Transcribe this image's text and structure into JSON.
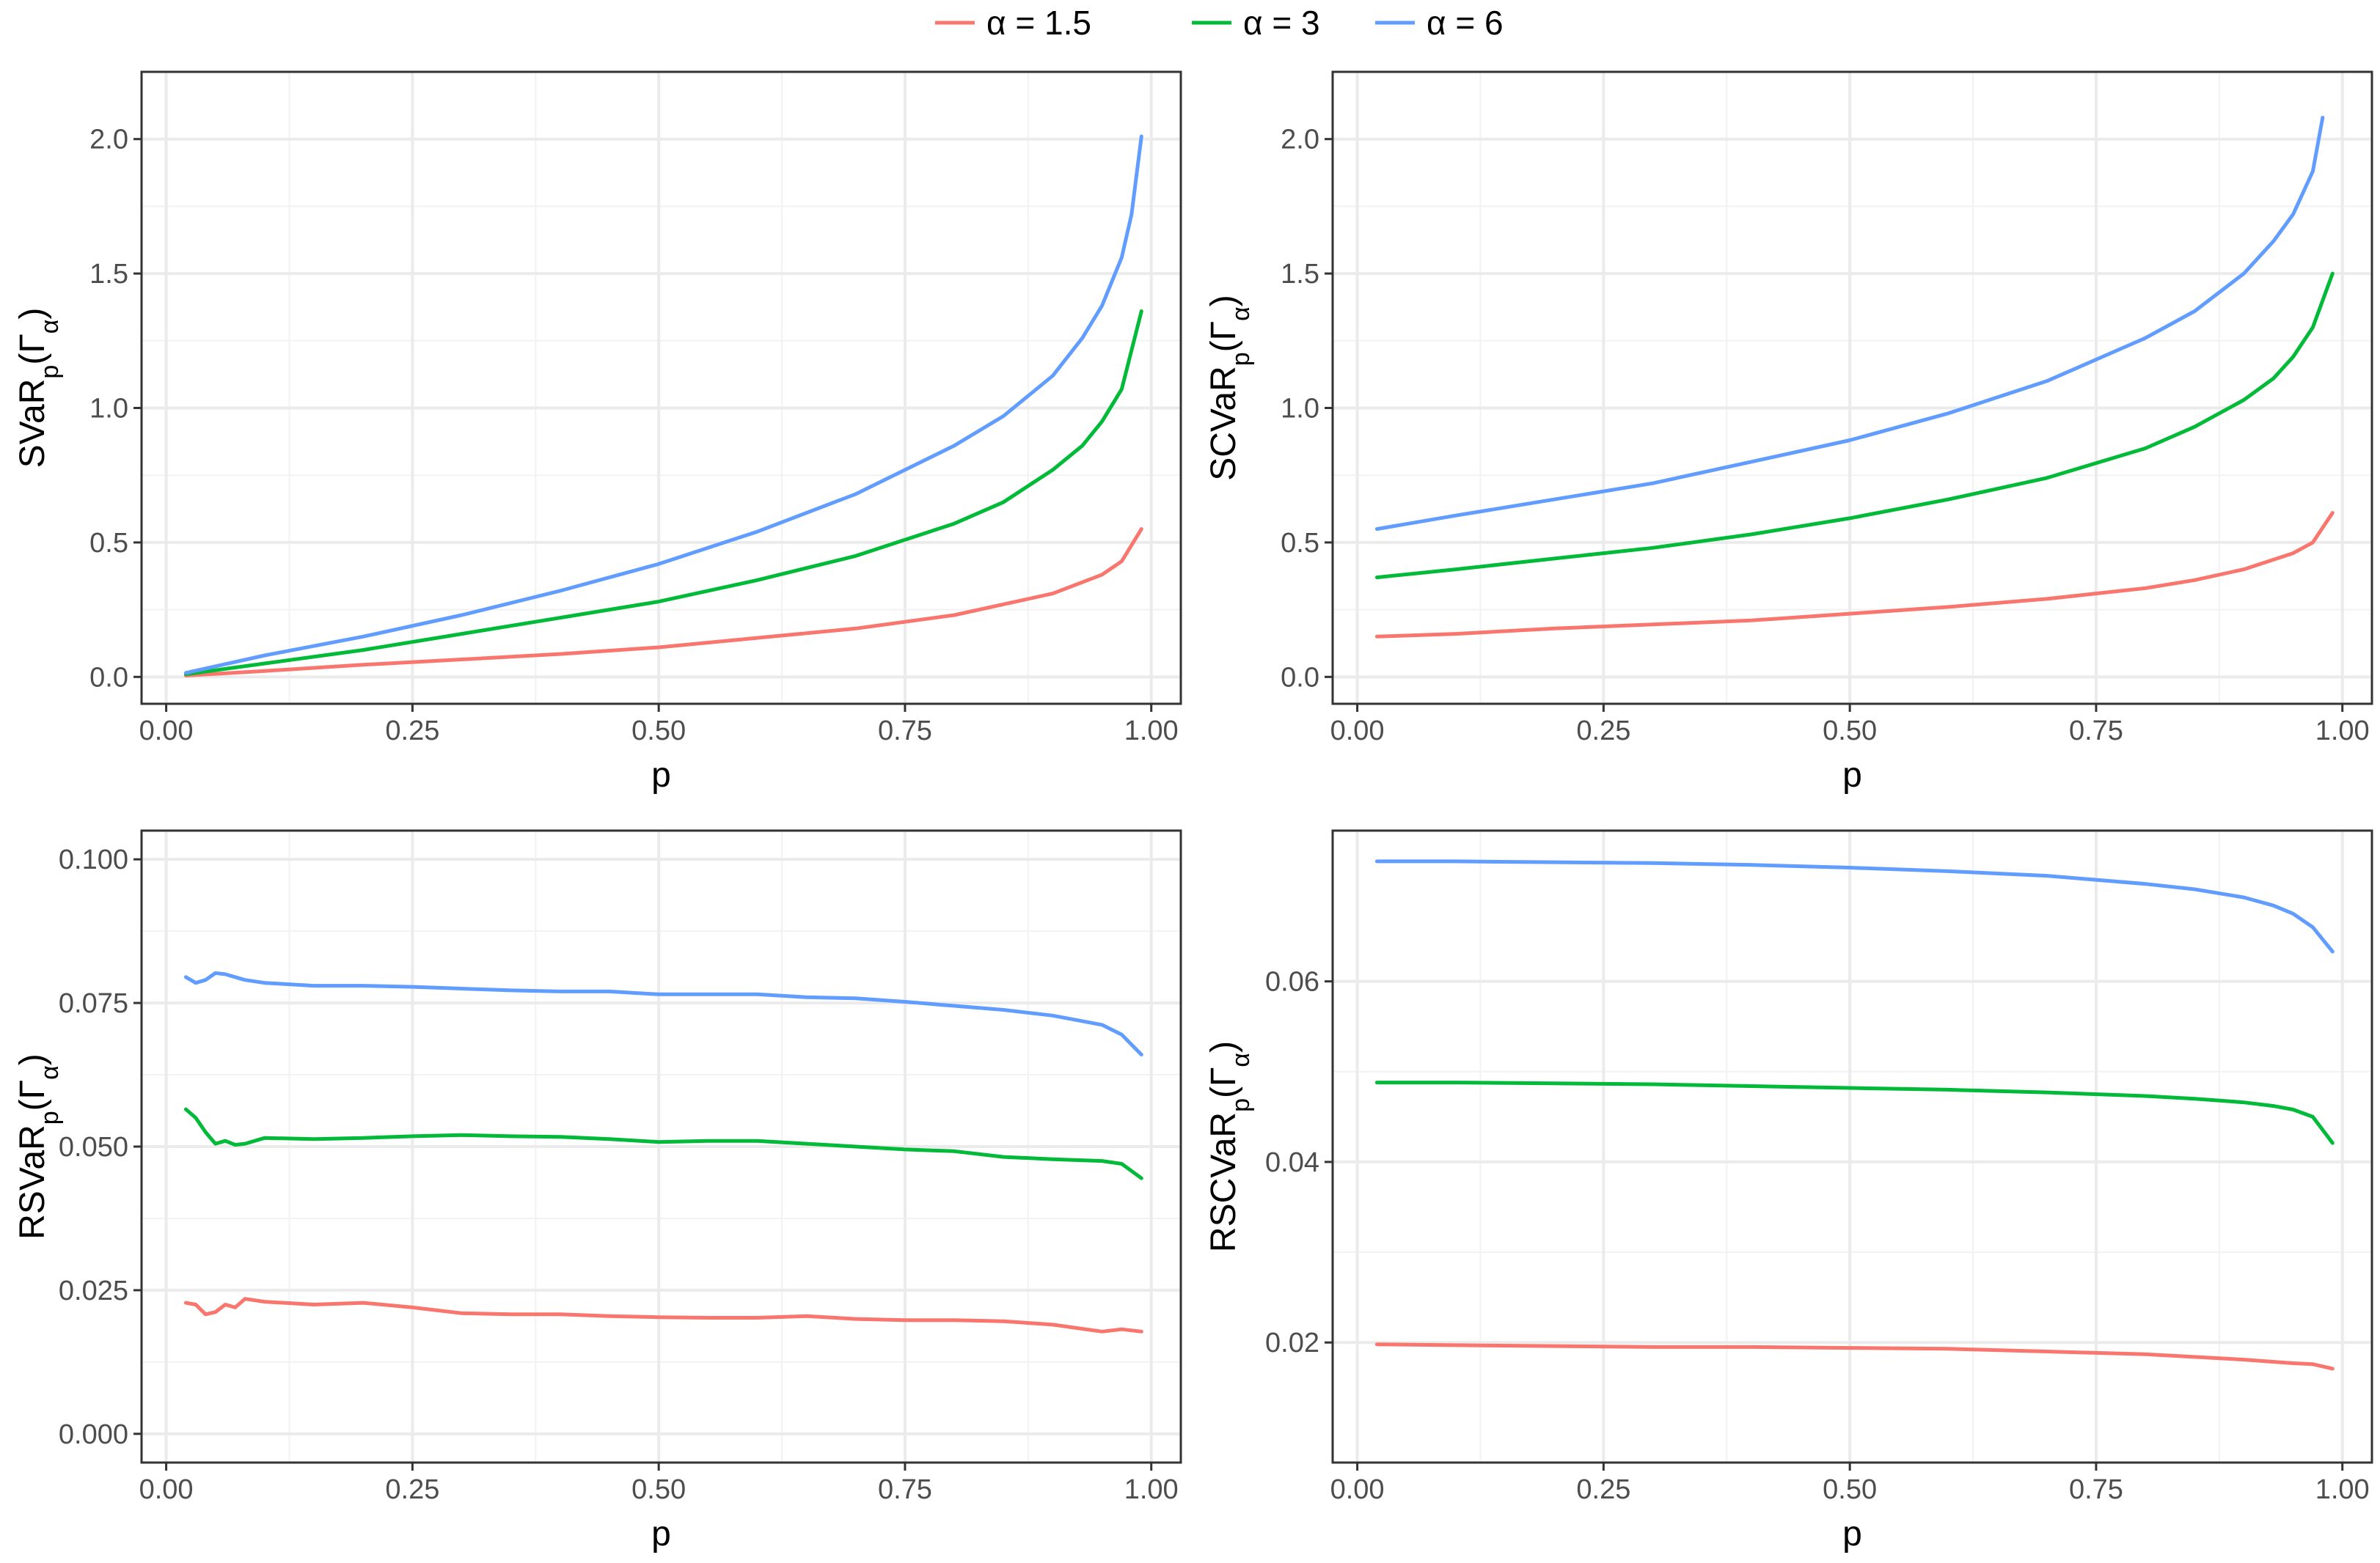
{
  "legend": {
    "placement": "top-center",
    "entries": [
      {
        "label": "α = 1.5",
        "color": "#F8766D"
      },
      {
        "label": "α = 3",
        "color": "#00BA38"
      },
      {
        "label": "α = 6",
        "color": "#619CFF"
      }
    ]
  },
  "chart_data": [
    {
      "type": "line",
      "panel": "top-left",
      "xlabel": "p",
      "ylabel": {
        "main": "SVaR",
        "sub": "p",
        "arg_open": "(Γ",
        "arg_sub": "α",
        "arg_close": ")"
      },
      "xlim": [
        -0.025,
        1.03
      ],
      "ylim": [
        -0.1,
        2.25
      ],
      "xticks": [
        0,
        0.25,
        0.5,
        0.75,
        1
      ],
      "xtick_labels": [
        "0.00",
        "0.25",
        "0.50",
        "0.75",
        "1.00"
      ],
      "yticks": [
        0,
        0.5,
        1,
        1.5,
        2
      ],
      "ytick_labels": [
        "0.0",
        "0.5",
        "1.0",
        "1.5",
        "2.0"
      ],
      "grid": true,
      "series": [
        {
          "name": "α = 1.5",
          "color": "#F8766D",
          "x": [
            0.02,
            0.1,
            0.2,
            0.3,
            0.4,
            0.5,
            0.6,
            0.7,
            0.8,
            0.85,
            0.9,
            0.95,
            0.97,
            0.99
          ],
          "y": [
            0.005,
            0.022,
            0.045,
            0.065,
            0.085,
            0.11,
            0.145,
            0.18,
            0.23,
            0.27,
            0.31,
            0.38,
            0.43,
            0.55
          ]
        },
        {
          "name": "α = 3",
          "color": "#00BA38",
          "x": [
            0.02,
            0.1,
            0.2,
            0.3,
            0.4,
            0.5,
            0.6,
            0.7,
            0.8,
            0.85,
            0.9,
            0.93,
            0.95,
            0.97,
            0.99
          ],
          "y": [
            0.01,
            0.05,
            0.1,
            0.16,
            0.22,
            0.28,
            0.36,
            0.45,
            0.57,
            0.65,
            0.77,
            0.86,
            0.95,
            1.07,
            1.36
          ]
        },
        {
          "name": "α = 6",
          "color": "#619CFF",
          "x": [
            0.02,
            0.1,
            0.2,
            0.3,
            0.4,
            0.5,
            0.6,
            0.7,
            0.8,
            0.85,
            0.9,
            0.93,
            0.95,
            0.97,
            0.98,
            0.99
          ],
          "y": [
            0.015,
            0.08,
            0.15,
            0.23,
            0.32,
            0.42,
            0.54,
            0.68,
            0.86,
            0.97,
            1.12,
            1.26,
            1.38,
            1.56,
            1.72,
            2.01
          ]
        }
      ]
    },
    {
      "type": "line",
      "panel": "top-right",
      "xlabel": "p",
      "ylabel": {
        "main": "SCVaR",
        "sub": "p",
        "arg_open": "(Γ",
        "arg_sub": "α",
        "arg_close": ")"
      },
      "xlim": [
        -0.025,
        1.03
      ],
      "ylim": [
        -0.1,
        2.25
      ],
      "xticks": [
        0,
        0.25,
        0.5,
        0.75,
        1
      ],
      "xtick_labels": [
        "0.00",
        "0.25",
        "0.50",
        "0.75",
        "1.00"
      ],
      "yticks": [
        0,
        0.5,
        1,
        1.5,
        2
      ],
      "ytick_labels": [
        "0.0",
        "0.5",
        "1.0",
        "1.5",
        "2.0"
      ],
      "grid": true,
      "series": [
        {
          "name": "α = 1.5",
          "color": "#F8766D",
          "x": [
            0.02,
            0.1,
            0.2,
            0.3,
            0.4,
            0.5,
            0.6,
            0.7,
            0.8,
            0.85,
            0.9,
            0.95,
            0.97,
            0.99
          ],
          "y": [
            0.15,
            0.16,
            0.18,
            0.195,
            0.21,
            0.235,
            0.26,
            0.29,
            0.33,
            0.36,
            0.4,
            0.46,
            0.5,
            0.61
          ]
        },
        {
          "name": "α = 3",
          "color": "#00BA38",
          "x": [
            0.02,
            0.1,
            0.2,
            0.3,
            0.4,
            0.5,
            0.6,
            0.7,
            0.8,
            0.85,
            0.9,
            0.93,
            0.95,
            0.97,
            0.99
          ],
          "y": [
            0.37,
            0.4,
            0.44,
            0.48,
            0.53,
            0.59,
            0.66,
            0.74,
            0.85,
            0.93,
            1.03,
            1.11,
            1.19,
            1.3,
            1.5
          ]
        },
        {
          "name": "α = 6",
          "color": "#619CFF",
          "x": [
            0.02,
            0.1,
            0.2,
            0.3,
            0.4,
            0.5,
            0.6,
            0.7,
            0.8,
            0.85,
            0.9,
            0.93,
            0.95,
            0.97,
            0.98
          ],
          "y": [
            0.55,
            0.6,
            0.66,
            0.72,
            0.8,
            0.88,
            0.98,
            1.1,
            1.26,
            1.36,
            1.5,
            1.62,
            1.72,
            1.88,
            2.08
          ]
        }
      ]
    },
    {
      "type": "line",
      "panel": "bottom-left",
      "xlabel": "p",
      "ylabel": {
        "main": "RSVaR",
        "sub": "p",
        "arg_open": "(Γ",
        "arg_sub": "α",
        "arg_close": ")"
      },
      "xlim": [
        -0.025,
        1.03
      ],
      "ylim": [
        -0.005,
        0.105
      ],
      "xticks": [
        0,
        0.25,
        0.5,
        0.75,
        1
      ],
      "xtick_labels": [
        "0.00",
        "0.25",
        "0.50",
        "0.75",
        "1.00"
      ],
      "yticks": [
        0,
        0.025,
        0.05,
        0.075,
        0.1
      ],
      "ytick_labels": [
        "0.000",
        "0.025",
        "0.050",
        "0.075",
        "0.100"
      ],
      "grid": true,
      "series": [
        {
          "name": "α = 1.5",
          "color": "#F8766D",
          "x": [
            0.02,
            0.03,
            0.04,
            0.05,
            0.06,
            0.07,
            0.08,
            0.1,
            0.15,
            0.2,
            0.25,
            0.3,
            0.35,
            0.4,
            0.45,
            0.5,
            0.55,
            0.6,
            0.65,
            0.7,
            0.75,
            0.8,
            0.85,
            0.9,
            0.95,
            0.97,
            0.99
          ],
          "y": [
            0.0228,
            0.0225,
            0.0208,
            0.0212,
            0.0225,
            0.022,
            0.0235,
            0.023,
            0.0225,
            0.0228,
            0.022,
            0.021,
            0.0208,
            0.0208,
            0.0205,
            0.0203,
            0.0202,
            0.0202,
            0.0205,
            0.02,
            0.0198,
            0.0198,
            0.0196,
            0.019,
            0.0178,
            0.0182,
            0.0178
          ]
        },
        {
          "name": "α = 3",
          "color": "#00BA38",
          "x": [
            0.02,
            0.03,
            0.04,
            0.05,
            0.06,
            0.07,
            0.08,
            0.1,
            0.15,
            0.2,
            0.25,
            0.3,
            0.35,
            0.4,
            0.45,
            0.5,
            0.55,
            0.6,
            0.65,
            0.7,
            0.75,
            0.8,
            0.85,
            0.9,
            0.95,
            0.97,
            0.99
          ],
          "y": [
            0.0565,
            0.055,
            0.0525,
            0.0505,
            0.051,
            0.0503,
            0.0505,
            0.0515,
            0.0513,
            0.0515,
            0.0518,
            0.052,
            0.0518,
            0.0517,
            0.0513,
            0.0508,
            0.051,
            0.051,
            0.0505,
            0.05,
            0.0495,
            0.0492,
            0.0482,
            0.0478,
            0.0475,
            0.047,
            0.0445
          ]
        },
        {
          "name": "α = 6",
          "color": "#619CFF",
          "x": [
            0.02,
            0.03,
            0.04,
            0.05,
            0.06,
            0.07,
            0.08,
            0.1,
            0.15,
            0.2,
            0.25,
            0.3,
            0.35,
            0.4,
            0.45,
            0.5,
            0.55,
            0.6,
            0.65,
            0.7,
            0.75,
            0.8,
            0.85,
            0.9,
            0.95,
            0.97,
            0.99
          ],
          "y": [
            0.0795,
            0.0785,
            0.079,
            0.0802,
            0.08,
            0.0795,
            0.079,
            0.0785,
            0.078,
            0.078,
            0.0778,
            0.0775,
            0.0772,
            0.077,
            0.077,
            0.0765,
            0.0765,
            0.0765,
            0.076,
            0.0758,
            0.0752,
            0.0745,
            0.0738,
            0.0728,
            0.0712,
            0.0695,
            0.066
          ]
        }
      ]
    },
    {
      "type": "line",
      "panel": "bottom-right",
      "xlabel": "p",
      "ylabel": {
        "main": "RSCVaR",
        "sub": "p",
        "arg_open": "(Γ",
        "arg_sub": "α",
        "arg_close": ")"
      },
      "xlim": [
        -0.025,
        1.03
      ],
      "ylim": [
        0.0067,
        0.0767
      ],
      "xticks": [
        0,
        0.25,
        0.5,
        0.75,
        1
      ],
      "xtick_labels": [
        "0.00",
        "0.25",
        "0.50",
        "0.75",
        "1.00"
      ],
      "yticks": [
        0.02,
        0.04,
        0.06
      ],
      "ytick_labels": [
        "0.02",
        "0.04",
        "0.06"
      ],
      "grid": true,
      "series": [
        {
          "name": "α = 1.5",
          "color": "#F8766D",
          "x": [
            0.02,
            0.1,
            0.2,
            0.3,
            0.4,
            0.5,
            0.6,
            0.7,
            0.8,
            0.85,
            0.9,
            0.95,
            0.97,
            0.99
          ],
          "y": [
            0.0198,
            0.0197,
            0.0196,
            0.0195,
            0.0195,
            0.0194,
            0.0193,
            0.019,
            0.0187,
            0.0184,
            0.0181,
            0.0177,
            0.0176,
            0.0171
          ]
        },
        {
          "name": "α = 3",
          "color": "#00BA38",
          "x": [
            0.02,
            0.1,
            0.2,
            0.3,
            0.4,
            0.5,
            0.6,
            0.7,
            0.8,
            0.85,
            0.9,
            0.93,
            0.95,
            0.97,
            0.99
          ],
          "y": [
            0.0488,
            0.0488,
            0.0487,
            0.0486,
            0.0484,
            0.0482,
            0.048,
            0.0477,
            0.0473,
            0.047,
            0.0466,
            0.0462,
            0.0458,
            0.045,
            0.0421
          ]
        },
        {
          "name": "α = 6",
          "color": "#619CFF",
          "x": [
            0.02,
            0.1,
            0.2,
            0.3,
            0.4,
            0.5,
            0.6,
            0.7,
            0.8,
            0.85,
            0.9,
            0.93,
            0.95,
            0.97,
            0.99
          ],
          "y": [
            0.0733,
            0.0733,
            0.0732,
            0.0731,
            0.0729,
            0.0726,
            0.0722,
            0.0717,
            0.0708,
            0.0702,
            0.0693,
            0.0684,
            0.0675,
            0.066,
            0.0633
          ]
        }
      ]
    }
  ]
}
